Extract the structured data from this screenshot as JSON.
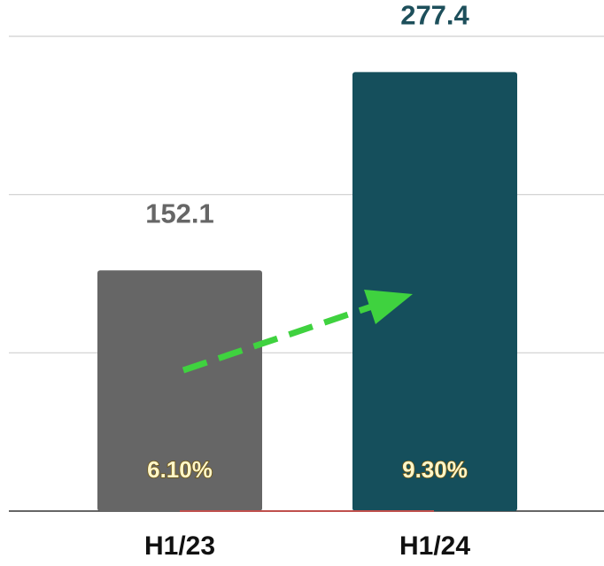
{
  "chart_data": {
    "type": "bar",
    "categories": [
      "H1/23",
      "H1/24"
    ],
    "values": [
      152.1,
      277.4
    ],
    "colors": [
      "#666666",
      "#154f5c"
    ],
    "label_colors": [
      "#666666",
      "#1d4f5b"
    ],
    "inner_labels": [
      "6.10%",
      "9.30%"
    ],
    "ylim": [
      0,
      300
    ],
    "yticks": [
      0,
      100,
      200,
      300
    ],
    "grid": true
  }
}
